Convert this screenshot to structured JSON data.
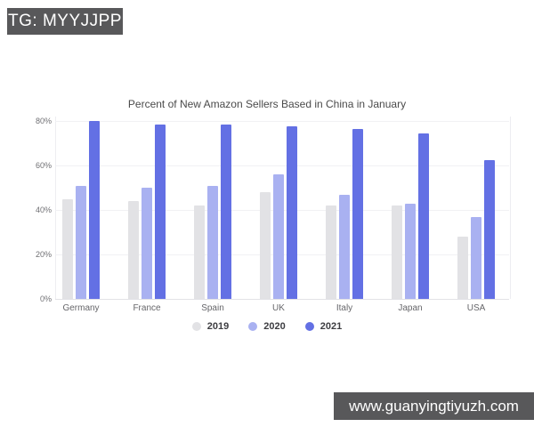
{
  "badges": {
    "top_left": "TG: MYYJJPP",
    "bottom_right": "www.guanyingtiyuzh.com"
  },
  "chart_data": {
    "type": "bar",
    "title": "Percent of New Amazon Sellers Based in China in January",
    "categories": [
      "Germany",
      "France",
      "Spain",
      "UK",
      "Italy",
      "Japan",
      "USA"
    ],
    "series": [
      {
        "name": "2019",
        "color": "#e2e2e5",
        "values": [
          45,
          44,
          42,
          48,
          42,
          42,
          28
        ]
      },
      {
        "name": "2020",
        "color": "#a9b1f1",
        "values": [
          51,
          50,
          51,
          56,
          47,
          43,
          37
        ]
      },
      {
        "name": "2021",
        "color": "#6370e4",
        "values": [
          80,
          78.5,
          78.5,
          77.5,
          76.5,
          74.5,
          62.5
        ]
      }
    ],
    "xlabel": "",
    "ylabel": "",
    "ylim": [
      0,
      80
    ],
    "yticks": [
      {
        "label": "0%",
        "value": 0
      },
      {
        "label": "20%",
        "value": 20
      },
      {
        "label": "40%",
        "value": 40
      },
      {
        "label": "60%",
        "value": 60
      },
      {
        "label": "80%",
        "value": 80
      }
    ],
    "grid": "horizontal",
    "legend_position": "bottom"
  }
}
